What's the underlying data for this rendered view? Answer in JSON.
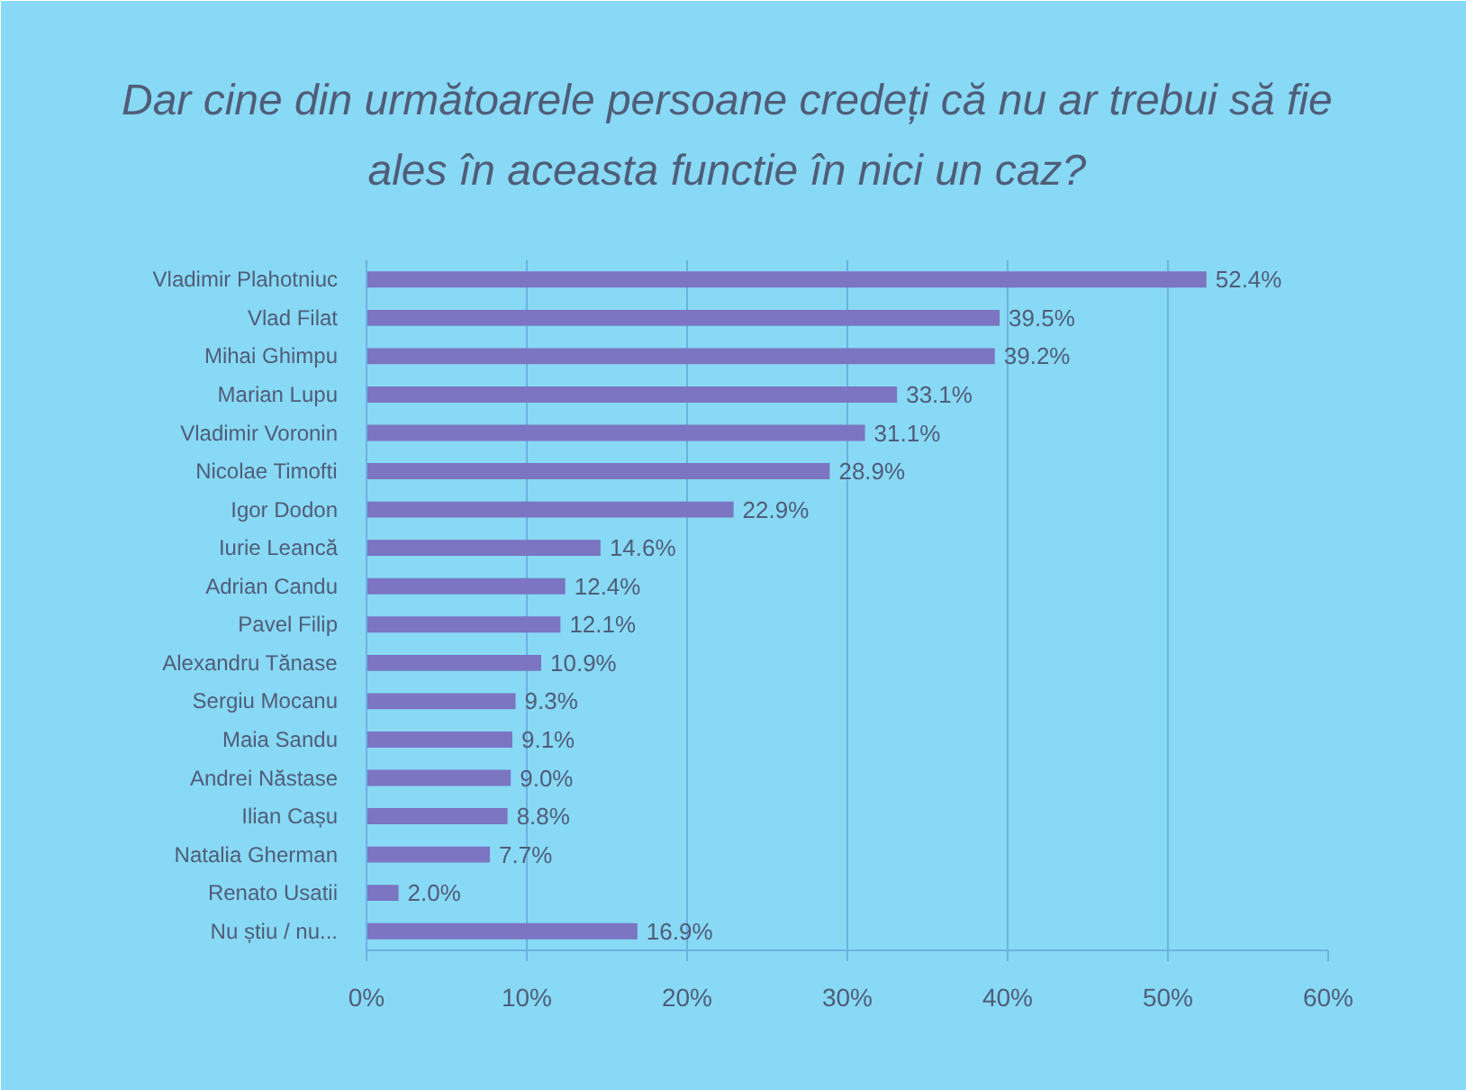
{
  "chart_data": {
    "type": "bar",
    "orientation": "horizontal",
    "title": "Dar cine din următoarele persoane credeți că nu ar trebui să fie ales în aceasta functie în nici un caz?",
    "categories": [
      "Vladimir Plahotniuc",
      "Vlad Filat",
      "Mihai Ghimpu",
      "Marian Lupu",
      "Vladimir Voronin",
      "Nicolae Timofti",
      "Igor Dodon",
      "Iurie Leancă",
      "Adrian Candu",
      "Pavel Filip",
      "Alexandru Tănase",
      "Sergiu Mocanu",
      "Maia Sandu",
      "Andrei Năstase",
      "Ilian Cașu",
      "Natalia Gherman",
      "Renato Usatii",
      "Nu știu / nu..."
    ],
    "values": [
      52.4,
      39.5,
      39.2,
      33.1,
      31.1,
      28.9,
      22.9,
      14.6,
      12.4,
      12.1,
      10.9,
      9.3,
      9.1,
      9.0,
      8.8,
      7.7,
      2.0,
      16.9
    ],
    "value_labels": [
      "52.4%",
      "39.5%",
      "39.2%",
      "33.1%",
      "31.1%",
      "28.9%",
      "22.9%",
      "14.6%",
      "12.4%",
      "12.1%",
      "10.9%",
      "9.3%",
      "9.1%",
      "9.0%",
      "8.8%",
      "7.7%",
      "2.0%",
      "16.9%"
    ],
    "color": "#7b75c2",
    "xlim": [
      0,
      60
    ],
    "xticks": [
      {
        "value": 0,
        "label": "0%"
      },
      {
        "value": 10,
        "label": "10%"
      },
      {
        "value": 20,
        "label": "20%"
      },
      {
        "value": 30,
        "label": "30%"
      },
      {
        "value": 40,
        "label": "40%"
      },
      {
        "value": 50,
        "label": "50%"
      },
      {
        "value": 60,
        "label": "60%"
      }
    ],
    "grid": "x"
  }
}
